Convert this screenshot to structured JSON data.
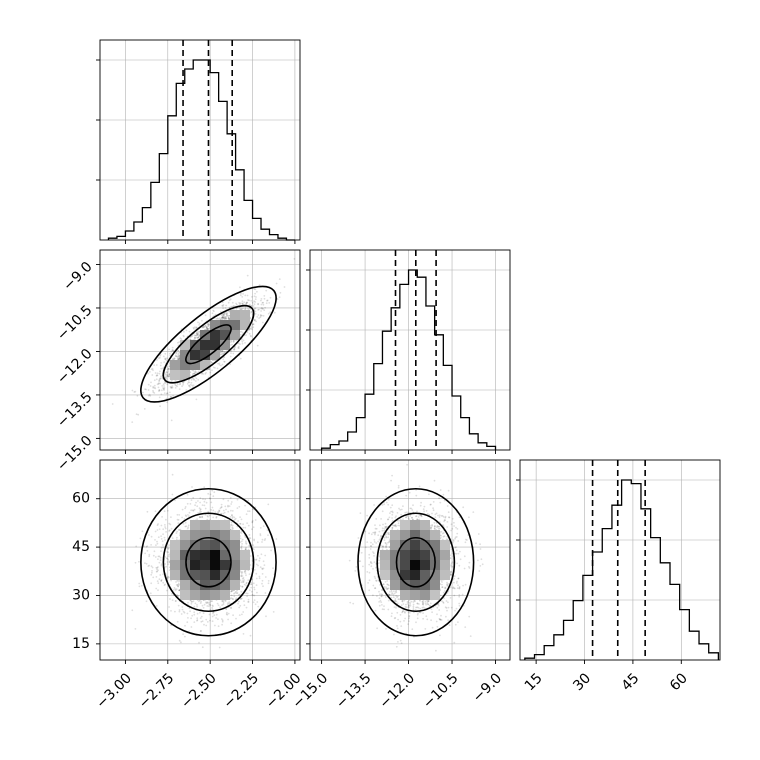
{
  "chart_data": {
    "type": "corner",
    "title": "",
    "parameters": [
      {
        "name": "",
        "range": [
          -3.15,
          -1.97
        ],
        "ticks": [
          "-3.00",
          "-2.75",
          "-2.50",
          "-2.25",
          "-2.00"
        ],
        "tick_values": [
          -3.0,
          -2.75,
          -2.5,
          -2.25,
          -2.0
        ]
      },
      {
        "name": "",
        "range": [
          -15.4,
          -8.5
        ],
        "ticks": [
          "-15.0",
          "-13.5",
          "-12.0",
          "-10.5",
          "-9.0"
        ],
        "tick_values": [
          -15.0,
          -13.5,
          -12.0,
          -10.5,
          -9.0
        ]
      },
      {
        "name": "",
        "range": [
          10,
          72
        ],
        "ticks": [
          "15",
          "30",
          "45",
          "60"
        ],
        "tick_values": [
          15,
          30,
          45,
          60
        ]
      }
    ],
    "quantiles": [
      {
        "q16": -2.66,
        "median": -2.51,
        "q84": -2.37
      },
      {
        "q16": -12.45,
        "median": -11.75,
        "q84": -11.05
      },
      {
        "q16": 32.5,
        "median": 40.3,
        "q84": 48.8
      }
    ],
    "histograms_1d": [
      {
        "bin_edges": [
          -3.1,
          -3.05,
          -3.0,
          -2.95,
          -2.9,
          -2.85,
          -2.8,
          -2.75,
          -2.7,
          -2.65,
          -2.6,
          -2.55,
          -2.5,
          -2.45,
          -2.4,
          -2.35,
          -2.3,
          -2.25,
          -2.2,
          -2.15,
          -2.1,
          -2.05,
          -2.0
        ],
        "counts": [
          1,
          2,
          5,
          10,
          18,
          32,
          48,
          69,
          87,
          95,
          100,
          100,
          93,
          77,
          59,
          39,
          22,
          12,
          6,
          3,
          1,
          0
        ]
      },
      {
        "bin_edges": [
          -15.0,
          -14.7,
          -14.4,
          -14.1,
          -13.8,
          -13.5,
          -13.2,
          -12.9,
          -12.6,
          -12.3,
          -12.0,
          -11.7,
          -11.4,
          -11.1,
          -10.8,
          -10.5,
          -10.2,
          -9.9,
          -9.6,
          -9.3,
          -9.0
        ],
        "counts": [
          1,
          3,
          5,
          10,
          18,
          31,
          48,
          66,
          79,
          92,
          100,
          96,
          80,
          64,
          47,
          30,
          18,
          9,
          4,
          2
        ]
      },
      {
        "bin_edges": [
          11.5,
          14.5,
          17.5,
          20.5,
          23.5,
          26.5,
          29.5,
          32.5,
          35.5,
          38.5,
          41.5,
          44.5,
          47.5,
          50.5,
          53.5,
          56.5,
          59.5,
          62.5,
          65.5,
          68.5,
          71.5
        ],
        "counts": [
          1,
          3,
          8,
          14,
          22,
          33,
          47,
          60,
          73,
          86,
          100,
          98,
          84,
          68,
          54,
          42,
          28,
          16,
          9,
          4
        ]
      }
    ],
    "pairs": [
      {
        "x_param": 0,
        "y_param": 1,
        "correlation": 0.8,
        "x_mean": -2.51,
        "x_sd": 0.14,
        "y_mean": -11.75,
        "y_sd": 0.7
      },
      {
        "x_param": 0,
        "y_param": 2,
        "correlation": 0.0,
        "x_mean": -2.51,
        "x_sd": 0.14,
        "y_mean": 40.3,
        "y_sd": 8.0
      },
      {
        "x_param": 1,
        "y_param": 2,
        "correlation": 0.0,
        "x_mean": -11.75,
        "x_sd": 0.7,
        "y_mean": 40.3,
        "y_sd": 8.0
      }
    ],
    "contour_levels_sigma": [
      0.5,
      1.0,
      1.5
    ],
    "grid": true,
    "legend": "none"
  }
}
